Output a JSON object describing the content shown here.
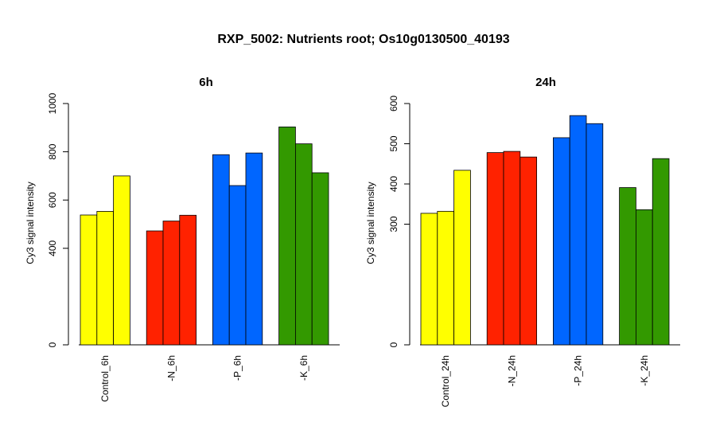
{
  "figure": {
    "title": "RXP_5002: Nutrients root; Os10g0130500_40193"
  },
  "chart_data": [
    {
      "type": "bar",
      "title": "6h",
      "ylabel": "Cy3 signal intensity",
      "xlabel": "",
      "ylim": [
        0,
        1000
      ],
      "yticks": [
        0,
        400,
        600,
        800,
        1000
      ],
      "grid": false,
      "categories": [
        "Control_6h",
        "-N_6h",
        "-P_6h",
        "-K_6h"
      ],
      "group_colors": [
        "#ffff00",
        "#ff2200",
        "#0066ff",
        "#339900"
      ],
      "values": [
        [
          538,
          553,
          700
        ],
        [
          472,
          513,
          537
        ],
        [
          788,
          660,
          795
        ],
        [
          903,
          833,
          713
        ]
      ]
    },
    {
      "type": "bar",
      "title": "24h",
      "ylabel": "Cy3 signal intensity",
      "xlabel": "",
      "ylim": [
        0,
        600
      ],
      "yticks": [
        0,
        300,
        400,
        500,
        600
      ],
      "grid": false,
      "categories": [
        "Control_24h",
        "-N_24h",
        "-P_24h",
        "-K_24h"
      ],
      "group_colors": [
        "#ffff00",
        "#ff2200",
        "#0066ff",
        "#339900"
      ],
      "values": [
        [
          327,
          332,
          434
        ],
        [
          478,
          481,
          467
        ],
        [
          515,
          570,
          550
        ],
        [
          391,
          336,
          463
        ]
      ]
    }
  ]
}
